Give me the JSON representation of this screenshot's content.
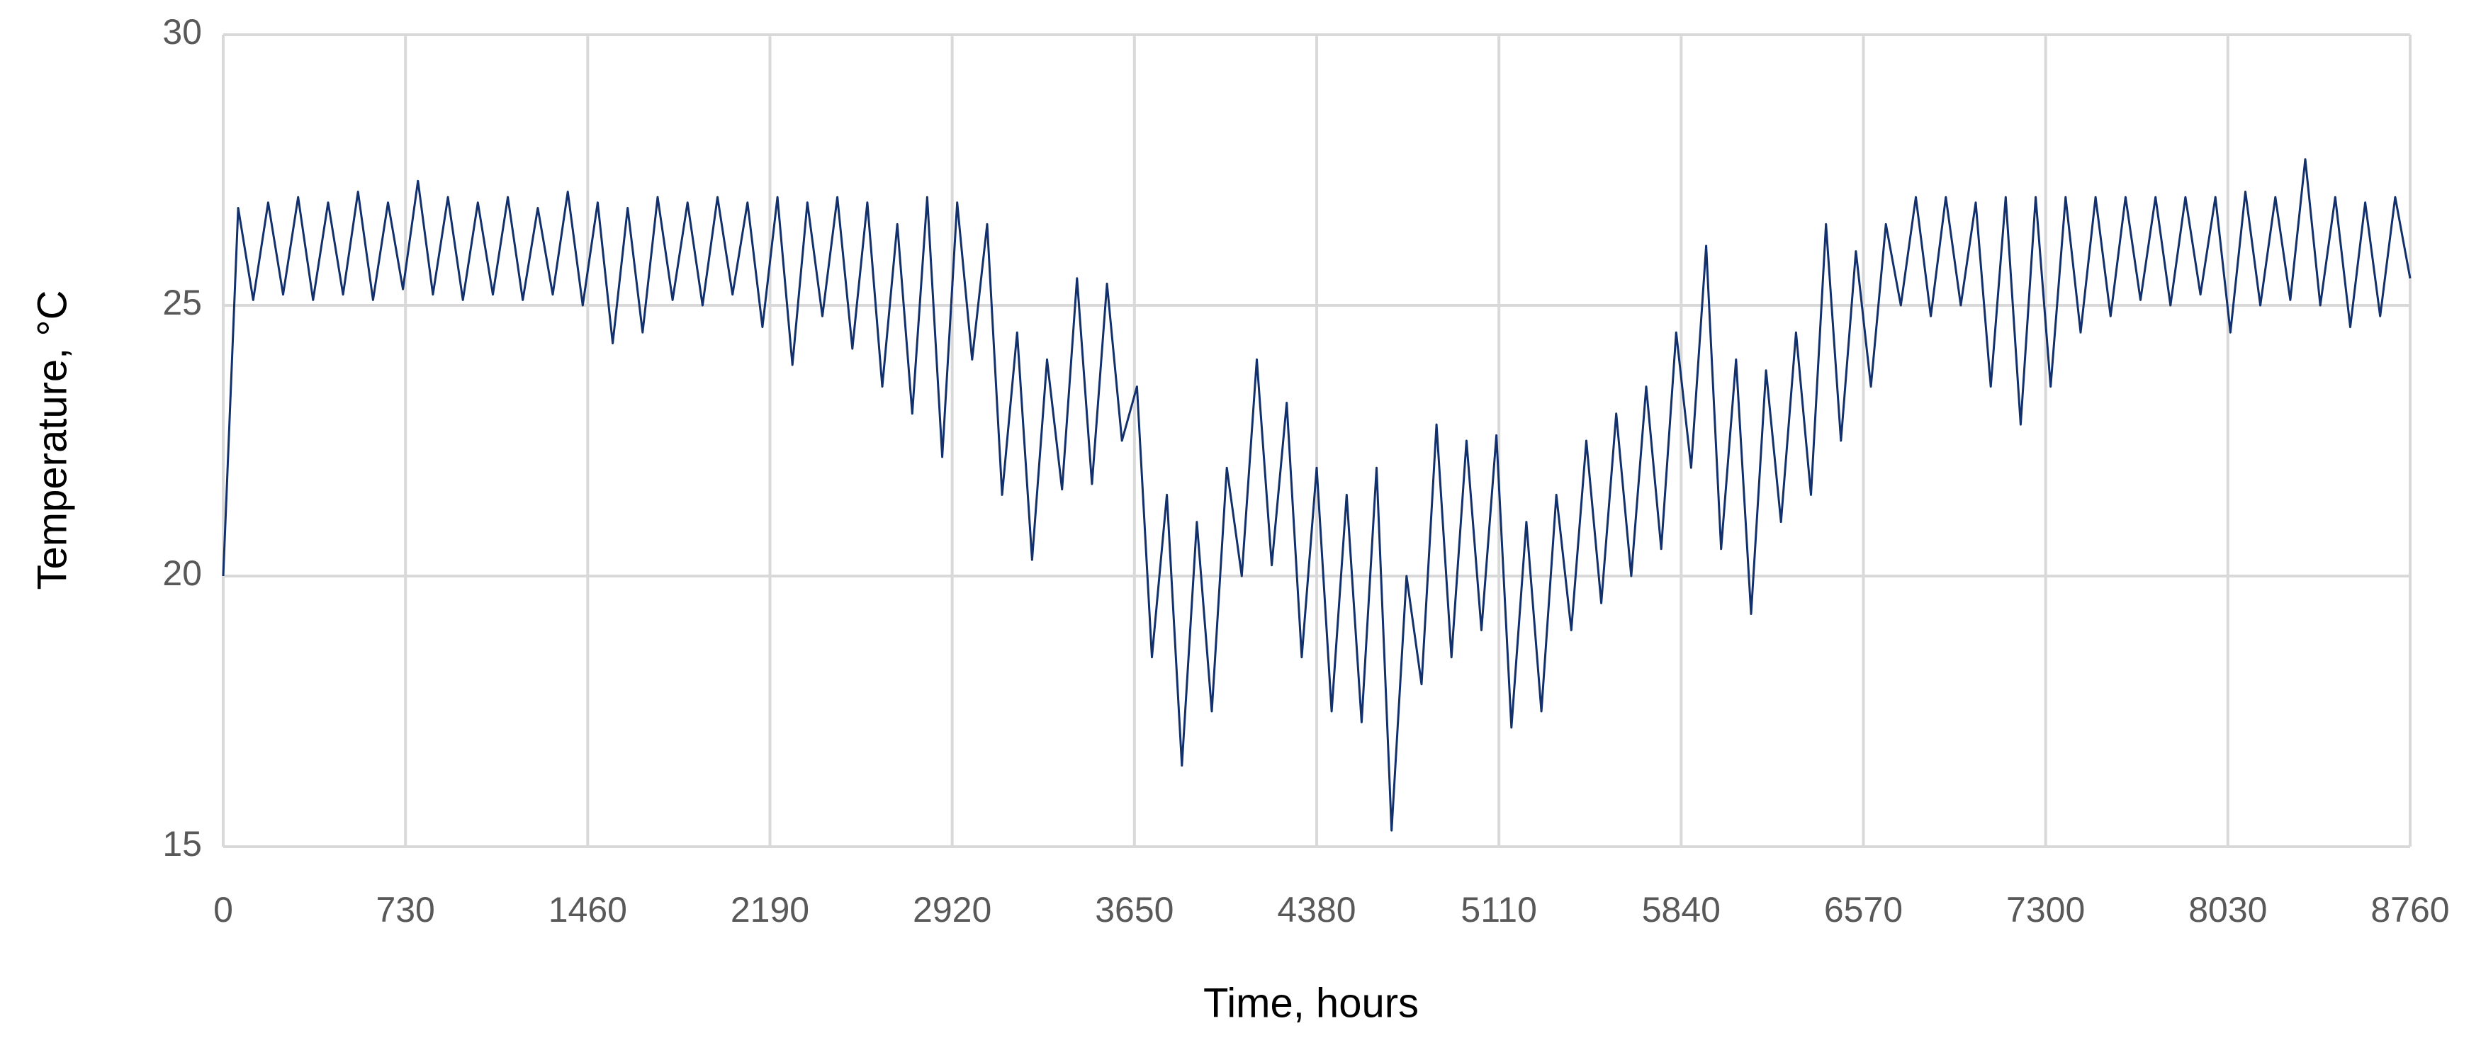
{
  "chart_data": {
    "type": "line",
    "x_label": "Time, hours",
    "y_label": "Temperature, °C",
    "xlim": [
      0,
      8760
    ],
    "ylim": [
      15,
      30
    ],
    "xticks": [
      0,
      730,
      1460,
      2190,
      2920,
      3650,
      4380,
      5110,
      5840,
      6570,
      7300,
      8030,
      8760
    ],
    "yticks": [
      15,
      20,
      25,
      30
    ],
    "grid": true,
    "x": [
      0,
      60,
      120,
      180,
      240,
      300,
      360,
      420,
      480,
      540,
      600,
      660,
      720,
      780,
      840,
      900,
      960,
      1020,
      1080,
      1140,
      1200,
      1260,
      1320,
      1380,
      1440,
      1500,
      1560,
      1620,
      1680,
      1740,
      1800,
      1860,
      1920,
      1980,
      2040,
      2100,
      2160,
      2220,
      2280,
      2340,
      2400,
      2460,
      2520,
      2580,
      2640,
      2700,
      2760,
      2820,
      2880,
      2940,
      3000,
      3060,
      3120,
      3180,
      3240,
      3300,
      3360,
      3420,
      3480,
      3540,
      3600,
      3660,
      3720,
      3780,
      3840,
      3900,
      3960,
      4020,
      4080,
      4140,
      4200,
      4260,
      4320,
      4380,
      4440,
      4500,
      4560,
      4620,
      4680,
      4740,
      4800,
      4860,
      4920,
      4980,
      5040,
      5100,
      5160,
      5220,
      5280,
      5340,
      5400,
      5460,
      5520,
      5580,
      5640,
      5700,
      5760,
      5820,
      5880,
      5940,
      6000,
      6060,
      6120,
      6180,
      6240,
      6300,
      6360,
      6420,
      6480,
      6540,
      6600,
      6660,
      6720,
      6780,
      6840,
      6900,
      6960,
      7020,
      7080,
      7140,
      7200,
      7260,
      7320,
      7380,
      7440,
      7500,
      7560,
      7620,
      7680,
      7740,
      7800,
      7860,
      7920,
      7980,
      8040,
      8100,
      8160,
      8220,
      8280,
      8340,
      8400,
      8460,
      8520,
      8580,
      8640,
      8700,
      8760
    ],
    "series": [
      {
        "color": "#12306b",
        "values": [
          20,
          26.8,
          25.1,
          26.9,
          25.2,
          27,
          25.1,
          26.9,
          25.2,
          27.1,
          25.1,
          26.9,
          25.3,
          27.3,
          25.2,
          27,
          25.1,
          26.9,
          25.2,
          27,
          25.1,
          26.8,
          25.2,
          27.1,
          25,
          26.9,
          24.3,
          26.8,
          24.5,
          27,
          25.1,
          26.9,
          25,
          27,
          25.2,
          26.9,
          24.6,
          27,
          23.9,
          26.9,
          24.8,
          27,
          24.2,
          26.9,
          23.5,
          26.5,
          23,
          27,
          22.2,
          26.9,
          24,
          26.5,
          21.5,
          24.5,
          20.3,
          24,
          21.6,
          25.5,
          21.7,
          25.4,
          22.5,
          23.5,
          18.5,
          21.5,
          16.5,
          21,
          17.5,
          22,
          20,
          24,
          20.2,
          23.2,
          18.5,
          22,
          17.5,
          21.5,
          17.3,
          22,
          15.3,
          20,
          18,
          22.8,
          18.5,
          22.5,
          19,
          22.6,
          17.2,
          21,
          17.5,
          21.5,
          19,
          22.5,
          19.5,
          23,
          20,
          23.5,
          20.5,
          24.5,
          22,
          26.1,
          20.5,
          24,
          19.3,
          23.8,
          21,
          24.5,
          21.5,
          26.5,
          22.5,
          26,
          23.5,
          26.5,
          25,
          27,
          24.8,
          27,
          25,
          26.9,
          23.5,
          27,
          22.8,
          27,
          23.5,
          27,
          24.5,
          27,
          24.8,
          27,
          25.1,
          27,
          25,
          27,
          25.2,
          27,
          24.5,
          27.1,
          25,
          27,
          25.1,
          27.7,
          25,
          27,
          24.6,
          26.9,
          24.8,
          27,
          25.5
        ]
      }
    ]
  }
}
